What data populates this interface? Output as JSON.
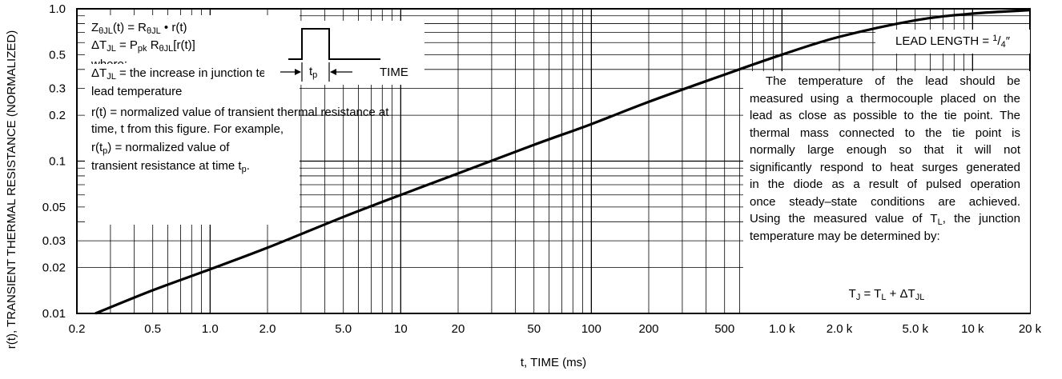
{
  "chart_data": {
    "type": "line",
    "xscale": "log",
    "yscale": "log",
    "xlim": [
      0.2,
      20000
    ],
    "ylim": [
      0.01,
      1.0
    ],
    "xlabel": "t, TIME (ms)",
    "ylabel": "r(t), TRANSIENT THERMAL RESISTANCE (NORMALIZED)",
    "x_tick_labels": [
      "0.2",
      "0.5",
      "1.0",
      "2.0",
      "5.0",
      "10",
      "20",
      "50",
      "100",
      "200",
      "500",
      "1.0 k",
      "2.0 k",
      "5.0 k",
      "10 k",
      "20 k"
    ],
    "x_tick_values": [
      0.2,
      0.5,
      1,
      2,
      5,
      10,
      20,
      50,
      100,
      200,
      500,
      1000,
      2000,
      5000,
      10000,
      20000
    ],
    "y_tick_labels": [
      "0.01",
      "0.02",
      "0.03",
      "0.05",
      "0.1",
      "0.2",
      "0.3",
      "0.5",
      "1.0"
    ],
    "y_tick_values": [
      0.01,
      0.02,
      0.03,
      0.05,
      0.1,
      0.2,
      0.3,
      0.5,
      1.0
    ],
    "grid": true,
    "series": [
      {
        "x": [
          0.25,
          0.5,
          1,
          2,
          5,
          10,
          20,
          50,
          100,
          200,
          500,
          1000,
          2000,
          5000,
          10000,
          20000
        ],
        "y": [
          0.01,
          0.0142,
          0.0195,
          0.027,
          0.043,
          0.06,
          0.083,
          0.128,
          0.175,
          0.245,
          0.37,
          0.5,
          0.655,
          0.84,
          0.93,
          0.98
        ]
      }
    ]
  },
  "legend_box": {
    "eq1_lhs_main": "Z",
    "eq1_lhs_sub": "θJL",
    "eq1_mid": "(t) = R",
    "eq1_r_sub": "θJL",
    "eq1_rhs": " • r(t)",
    "eq2_delta": "ΔT",
    "eq2_delta_sub": "JL",
    "eq2_mid": " = P",
    "eq2_p_sub": "pk",
    "eq2_r": " R",
    "eq2_r_sub": "θJL",
    "eq2_rhs": "[r(t)]",
    "where": "where:",
    "def1_delta": "ΔT",
    "def1_sub": "JL",
    "def1_text": " = the increase in junction temperature above the",
    "def1_text2": "lead temperature",
    "def2_line1": "r(t) = normalized value of transient thermal resistance at",
    "def2_line2": "time, t from this figure. For example,",
    "def3_pre": "r(t",
    "def3_sub": "p",
    "def3_post": ") = normalized value of",
    "def4_pre": "transient resistance at time t",
    "def4_sub": "p",
    "def4_post": "."
  },
  "pulse": {
    "tp_main": "t",
    "tp_sub": "p",
    "time_label": "TIME"
  },
  "lead_length": {
    "text": "LEAD LENGTH = ",
    "num": "1",
    "den": "4",
    "unit": "″"
  },
  "note": {
    "line1": "The temperature of the lead should be",
    "line2": "measured using a thermocouple placed on the",
    "line3": "lead as close as possible to the tie point. The",
    "line4": "thermal mass connected to the tie point is",
    "line5": "normally large enough so that it will not",
    "line6": "significantly respond to heat surges generated",
    "line7": "in the diode as a result of pulsed operation",
    "line8": "once steady–state conditions are achieved.",
    "line9_pre": "Using the measured value of T",
    "line9_sub": "L",
    "line9_post": ", the junction",
    "line10": "temperature may be determined by:",
    "eq_tj": "T",
    "eq_tj_sub": "J",
    "eq_mid": " = T",
    "eq_tl_sub": "L",
    "eq_plus": " + ΔT",
    "eq_dt_sub": "JL"
  }
}
